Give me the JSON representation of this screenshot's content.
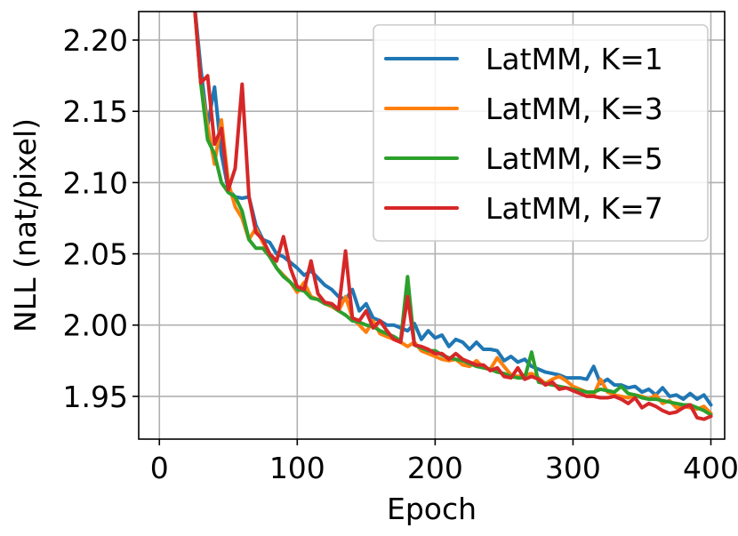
{
  "chart_data": {
    "type": "line",
    "xlabel": "Epoch",
    "ylabel": "NLL (nat/pixel)",
    "xlim": [
      -15,
      410
    ],
    "ylim": [
      1.92,
      2.22
    ],
    "xticks": [
      0,
      100,
      200,
      300,
      400
    ],
    "xtick_labels": [
      "0",
      "100",
      "200",
      "300",
      "400"
    ],
    "yticks": [
      1.95,
      2.0,
      2.05,
      2.1,
      2.15,
      2.2
    ],
    "ytick_labels": [
      "1.95",
      "2.00",
      "2.05",
      "2.10",
      "2.15",
      "2.20"
    ],
    "grid": true,
    "legend_position": "top-right",
    "x": [
      25,
      30,
      35,
      40,
      45,
      50,
      55,
      60,
      65,
      70,
      75,
      80,
      85,
      90,
      95,
      100,
      105,
      110,
      115,
      120,
      125,
      130,
      135,
      140,
      145,
      150,
      155,
      160,
      165,
      170,
      175,
      180,
      185,
      190,
      195,
      200,
      205,
      210,
      215,
      220,
      225,
      230,
      235,
      240,
      245,
      250,
      255,
      260,
      265,
      270,
      275,
      280,
      285,
      290,
      295,
      300,
      305,
      310,
      315,
      320,
      325,
      330,
      335,
      340,
      345,
      350,
      355,
      360,
      365,
      370,
      375,
      380,
      385,
      390,
      395,
      400
    ],
    "series": [
      {
        "name": "LatMM, K=1",
        "color": "#1f77b4",
        "values": [
          2.23,
          2.18,
          2.14,
          2.167,
          2.12,
          2.095,
          2.09,
          2.089,
          2.09,
          2.07,
          2.06,
          2.058,
          2.05,
          2.048,
          2.044,
          2.04,
          2.035,
          2.038,
          2.033,
          2.028,
          2.025,
          2.02,
          2.018,
          2.025,
          2.01,
          2.015,
          2.005,
          2.003,
          2.0,
          2.0,
          1.998,
          1.996,
          2.001,
          1.99,
          1.996,
          1.991,
          1.993,
          1.985,
          1.99,
          1.988,
          1.983,
          1.988,
          1.983,
          1.983,
          1.982,
          1.975,
          1.978,
          1.974,
          1.976,
          1.971,
          1.969,
          1.967,
          1.966,
          1.965,
          1.963,
          1.963,
          1.963,
          1.962,
          1.971,
          1.959,
          1.962,
          1.958,
          1.958,
          1.956,
          1.957,
          1.953,
          1.955,
          1.951,
          1.956,
          1.95,
          1.951,
          1.948,
          1.952,
          1.948,
          1.951,
          1.944
        ]
      },
      {
        "name": "LatMM, K=3",
        "color": "#ff7f0e",
        "values": [
          2.23,
          2.17,
          2.14,
          2.113,
          2.144,
          2.1,
          2.083,
          2.075,
          2.06,
          2.068,
          2.058,
          2.05,
          2.04,
          2.035,
          2.03,
          2.023,
          2.03,
          2.02,
          2.018,
          2.015,
          2.013,
          2.01,
          2.02,
          2.005,
          2.0,
          1.995,
          2.003,
          1.994,
          1.992,
          1.99,
          1.988,
          1.985,
          1.988,
          1.982,
          1.98,
          1.978,
          1.976,
          1.975,
          1.976,
          1.972,
          1.971,
          1.975,
          1.97,
          1.969,
          1.977,
          1.971,
          1.965,
          1.964,
          1.965,
          1.966,
          1.963,
          1.959,
          1.962,
          1.964,
          1.961,
          1.957,
          1.955,
          1.953,
          1.951,
          1.962,
          1.953,
          1.951,
          1.95,
          1.949,
          1.951,
          1.95,
          1.948,
          1.951,
          1.945,
          1.947,
          1.942,
          1.943,
          1.942,
          1.941,
          1.943,
          1.938
        ]
      },
      {
        "name": "LatMM, K=5",
        "color": "#2ca02c",
        "values": [
          2.23,
          2.17,
          2.13,
          2.12,
          2.1,
          2.093,
          2.09,
          2.08,
          2.06,
          2.054,
          2.054,
          2.048,
          2.04,
          2.034,
          2.03,
          2.025,
          2.024,
          2.019,
          2.018,
          2.015,
          2.014,
          2.01,
          2.007,
          2.003,
          2.002,
          2.0,
          1.999,
          1.996,
          1.994,
          1.992,
          1.989,
          2.034,
          1.986,
          1.984,
          1.982,
          1.982,
          1.979,
          1.977,
          1.976,
          1.975,
          1.973,
          1.971,
          1.97,
          1.969,
          1.967,
          1.966,
          1.964,
          1.963,
          1.963,
          1.981,
          1.96,
          1.959,
          1.958,
          1.957,
          1.956,
          1.955,
          1.954,
          1.953,
          1.953,
          1.955,
          1.954,
          1.953,
          1.957,
          1.952,
          1.951,
          1.949,
          1.948,
          1.948,
          1.947,
          1.946,
          1.945,
          1.944,
          1.944,
          1.942,
          1.94,
          1.937
        ]
      },
      {
        "name": "LatMM, K=7",
        "color": "#d62728",
        "values": [
          2.23,
          2.17,
          2.175,
          2.127,
          2.138,
          2.095,
          2.11,
          2.169,
          2.09,
          2.065,
          2.06,
          2.05,
          2.045,
          2.062,
          2.04,
          2.027,
          2.025,
          2.045,
          2.022,
          2.016,
          2.015,
          2.011,
          2.052,
          2.005,
          2.003,
          2.01,
          1.998,
          2.003,
          1.996,
          1.99,
          1.988,
          2.02,
          1.986,
          1.985,
          1.983,
          1.98,
          1.98,
          1.976,
          1.98,
          1.976,
          1.974,
          1.972,
          1.972,
          1.968,
          1.97,
          1.964,
          1.963,
          1.97,
          1.962,
          1.964,
          1.962,
          1.958,
          1.96,
          1.955,
          1.956,
          1.954,
          1.952,
          1.95,
          1.95,
          1.949,
          1.949,
          1.95,
          1.948,
          1.945,
          1.949,
          1.942,
          1.945,
          1.943,
          1.94,
          1.938,
          1.939,
          1.942,
          1.944,
          1.935,
          1.934,
          1.936
        ]
      }
    ]
  }
}
